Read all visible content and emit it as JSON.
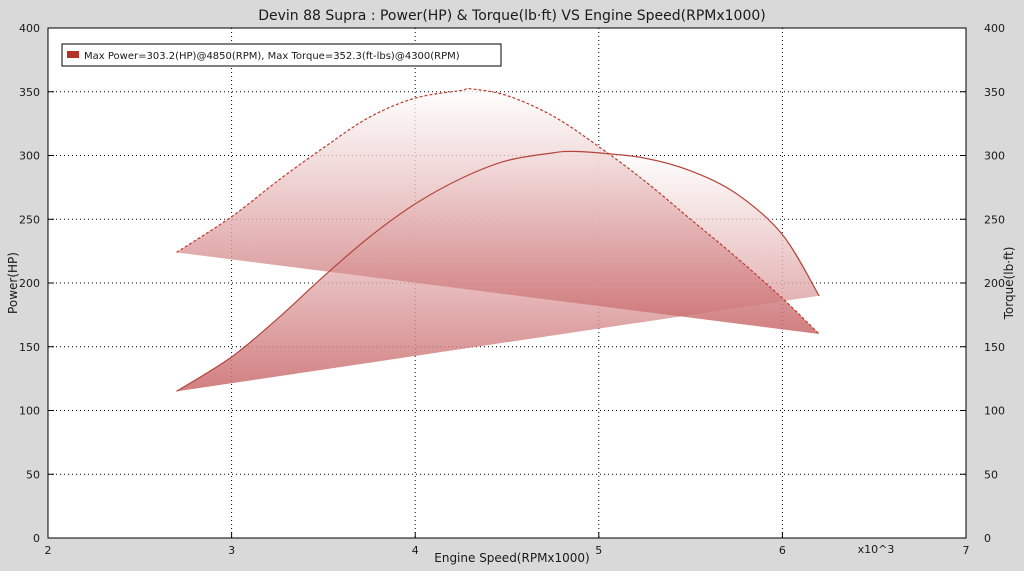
{
  "chart_data": {
    "type": "area",
    "title": "Devin 88 Supra : Power(HP) & Torque(lb·ft) VS Engine Speed(RPMx1000)",
    "xlabel": "Engine Speed(RPMx1000)",
    "ylabel": "Power(HP)",
    "y2label": "Torque(lb·ft)",
    "x_multiplier_label": "x10^3",
    "xlim": [
      2,
      7
    ],
    "ylim": [
      0,
      400
    ],
    "y2lim": [
      0,
      400
    ],
    "xticks": [
      "2",
      "3",
      "4",
      "5",
      "6",
      "7"
    ],
    "yticks": [
      "0",
      "50",
      "100",
      "150",
      "200",
      "250",
      "300",
      "350",
      "400"
    ],
    "y2ticks": [
      "0",
      "50",
      "100",
      "150",
      "200",
      "250",
      "300",
      "350",
      "400"
    ],
    "grid": true,
    "legend_position": "top-left",
    "legend_text": "Max Power=303.2(HP)@4850(RPM), Max Torque=352.3(ft-lbs)@4300(RPM)",
    "colors": {
      "power": "#b5453a",
      "torque": "#c0392b",
      "fill": "#c9686a",
      "legend_swatch": "#b5322a",
      "background": "#d9d9d9",
      "plot_background": "#ffffff",
      "grid": "#000000"
    },
    "series": [
      {
        "name": "Power(HP)",
        "axis": "left",
        "line_style": "solid",
        "x": [
          2.7,
          3.0,
          3.25,
          3.5,
          3.75,
          4.0,
          4.25,
          4.5,
          4.75,
          4.85,
          5.0,
          5.25,
          5.5,
          5.75,
          6.0,
          6.2
        ],
        "y": [
          115,
          142,
          172,
          205,
          236,
          262,
          282,
          296,
          302,
          303.2,
          302,
          298,
          288,
          270,
          238,
          190
        ]
      },
      {
        "name": "Torque(lb·ft)",
        "axis": "right",
        "line_style": "dashed",
        "x": [
          2.7,
          3.0,
          3.25,
          3.5,
          3.75,
          4.0,
          4.25,
          4.3,
          4.5,
          4.75,
          5.0,
          5.25,
          5.5,
          5.75,
          6.0,
          6.2
        ],
        "y": [
          224,
          252,
          280,
          306,
          330,
          345,
          351,
          352.3,
          347,
          331,
          307,
          280,
          250,
          220,
          188,
          160
        ]
      }
    ]
  }
}
